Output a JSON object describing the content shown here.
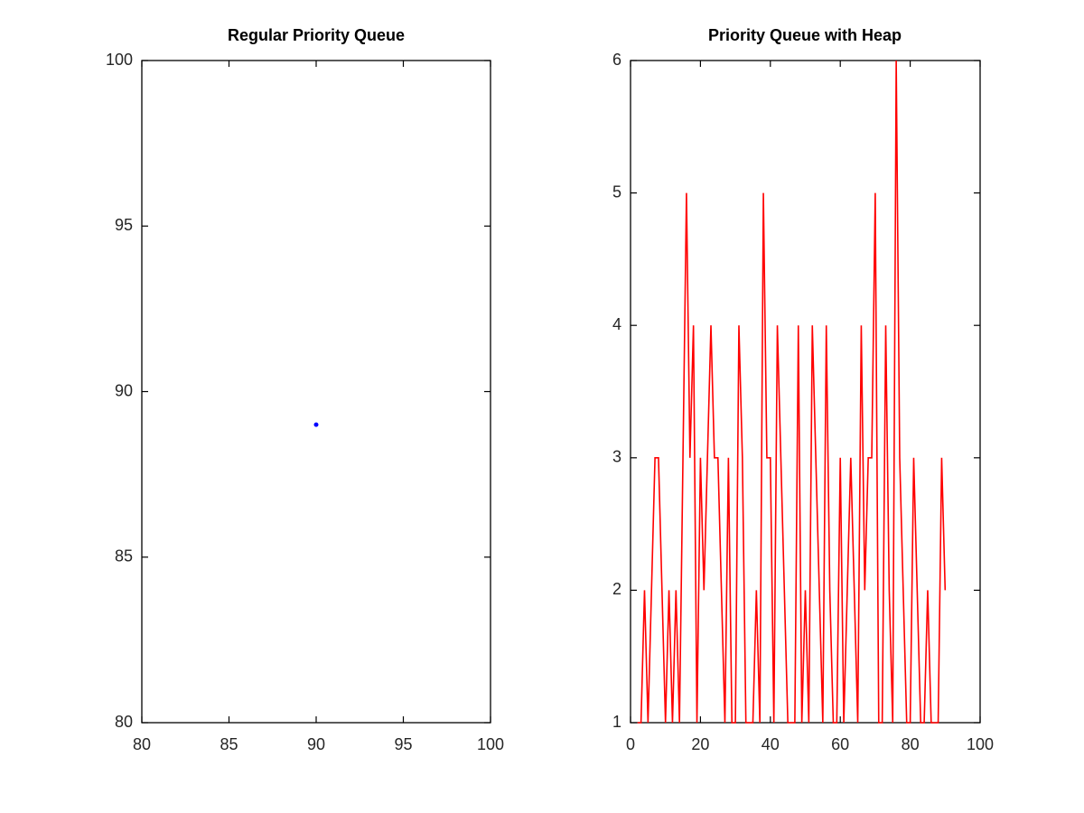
{
  "chart_data": [
    {
      "type": "scatter",
      "title": "Regular Priority Queue",
      "x": [
        90
      ],
      "values": [
        89
      ],
      "color": "#0000ff",
      "xlim": [
        80,
        100
      ],
      "xticks": [
        80,
        85,
        90,
        95,
        100
      ],
      "ylim": [
        80,
        100
      ],
      "yticks": [
        80,
        85,
        90,
        95,
        100
      ]
    },
    {
      "type": "line",
      "title": "Priority Queue with Heap",
      "x": [
        2,
        3,
        4,
        5,
        6,
        7,
        8,
        9,
        10,
        11,
        12,
        13,
        14,
        15,
        16,
        17,
        18,
        19,
        20,
        21,
        22,
        23,
        24,
        25,
        26,
        27,
        28,
        29,
        30,
        31,
        32,
        33,
        34,
        35,
        36,
        37,
        38,
        39,
        40,
        41,
        42,
        43,
        44,
        45,
        46,
        47,
        48,
        49,
        50,
        51,
        52,
        53,
        54,
        55,
        56,
        57,
        58,
        59,
        60,
        61,
        62,
        63,
        64,
        65,
        66,
        67,
        68,
        69,
        70,
        71,
        72,
        73,
        74,
        75,
        76,
        77,
        78,
        79,
        80,
        81,
        82,
        83,
        84,
        85,
        86,
        87,
        88,
        89,
        90
      ],
      "values": [
        1,
        1,
        2,
        1,
        2,
        3,
        3,
        2,
        1,
        2,
        1,
        2,
        1,
        3,
        5,
        3,
        4,
        1,
        3,
        2,
        3,
        4,
        3,
        3,
        2,
        1,
        3,
        1,
        1,
        4,
        3,
        1,
        1,
        1,
        2,
        1,
        5,
        3,
        3,
        1,
        4,
        3,
        2,
        1,
        1,
        1,
        4,
        1,
        2,
        1,
        4,
        3,
        2,
        1,
        4,
        2,
        1,
        1,
        3,
        1,
        2,
        3,
        2,
        1,
        4,
        2,
        3,
        3,
        5,
        1,
        1,
        4,
        2,
        1,
        6,
        3,
        2,
        1,
        1,
        3,
        2,
        1,
        1,
        2,
        1,
        1,
        1,
        3,
        2
      ],
      "color": "#ff0000",
      "xlim": [
        0,
        100
      ],
      "xticks": [
        0,
        20,
        40,
        60,
        80,
        100
      ],
      "ylim": [
        1,
        6
      ],
      "yticks": [
        1,
        2,
        3,
        4,
        5,
        6
      ]
    }
  ]
}
